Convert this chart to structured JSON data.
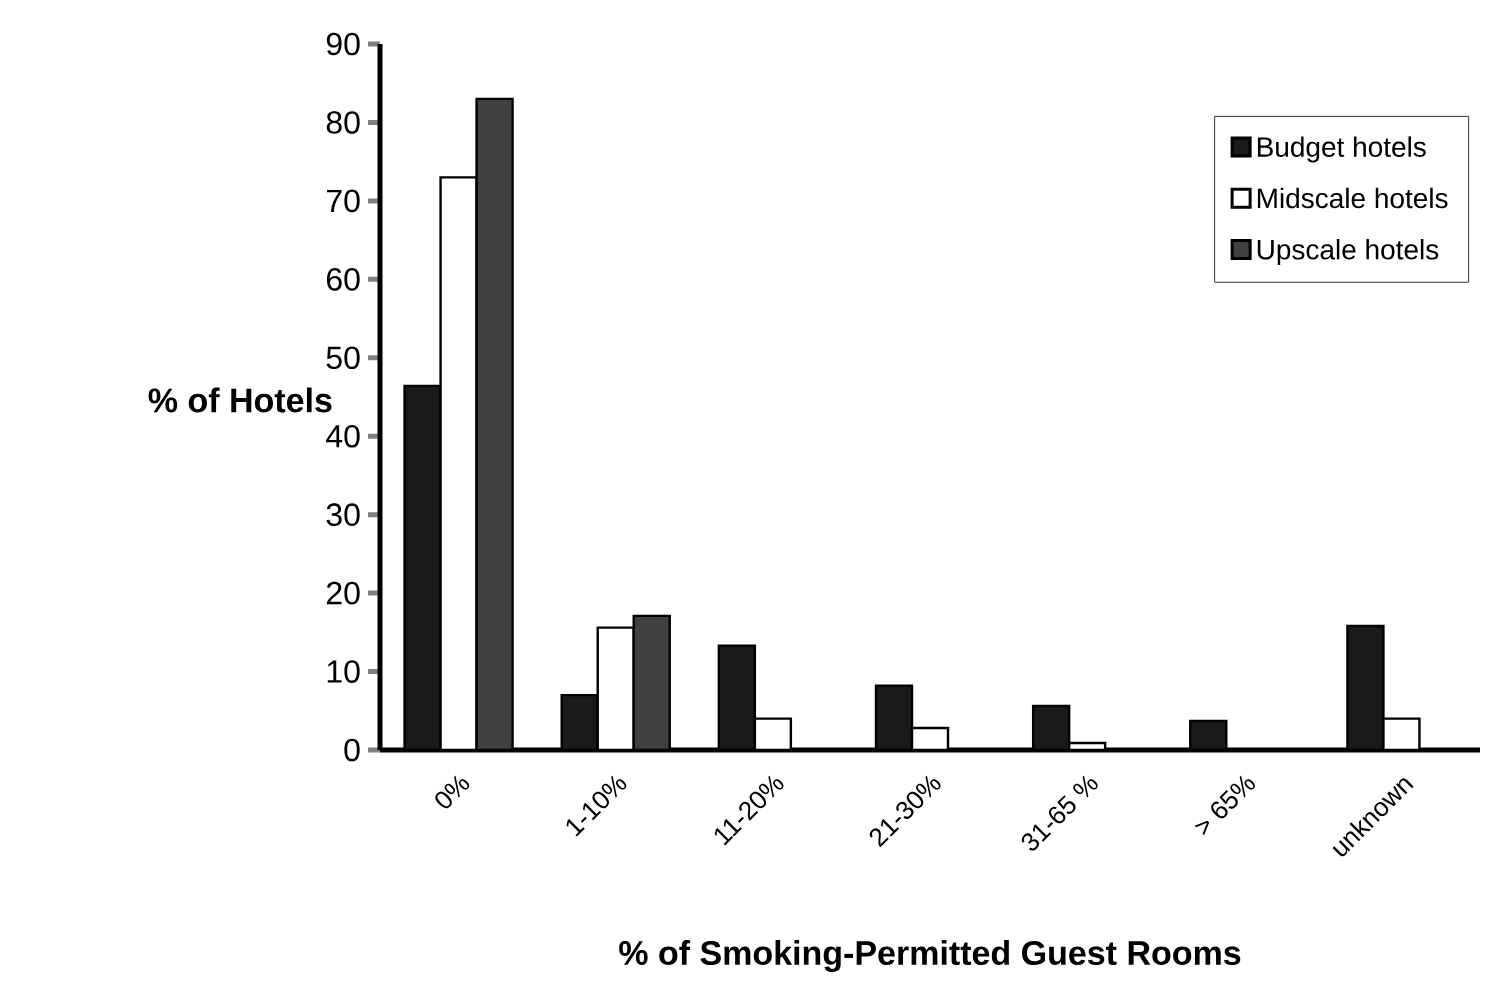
{
  "chart_data": {
    "type": "bar",
    "xlabel": "% of Smoking-Permitted Guest Rooms",
    "ylabel": "% of Hotels",
    "categories": [
      "0%",
      "1-10%",
      "11-20%",
      "21-30%",
      "31-65 %",
      "> 65%",
      "unknown"
    ],
    "series": [
      {
        "name": "Budget hotels",
        "color": "#1a1a1a",
        "values": [
          46.4,
          7,
          13.3,
          8.2,
          5.6,
          3.7,
          15.8
        ]
      },
      {
        "name": "Midscale hotels",
        "color": "#ffffff",
        "values": [
          73,
          15.6,
          4,
          2.8,
          0.9,
          null,
          4
        ]
      },
      {
        "name": "Upscale hotels",
        "color": "#404040",
        "values": [
          83,
          17.1,
          null,
          null,
          null,
          null,
          null
        ]
      }
    ],
    "ylim": [
      0,
      90
    ],
    "yticks": [
      0,
      10,
      20,
      30,
      40,
      50,
      60,
      70,
      80,
      90
    ],
    "legend": "right",
    "grid": false
  }
}
